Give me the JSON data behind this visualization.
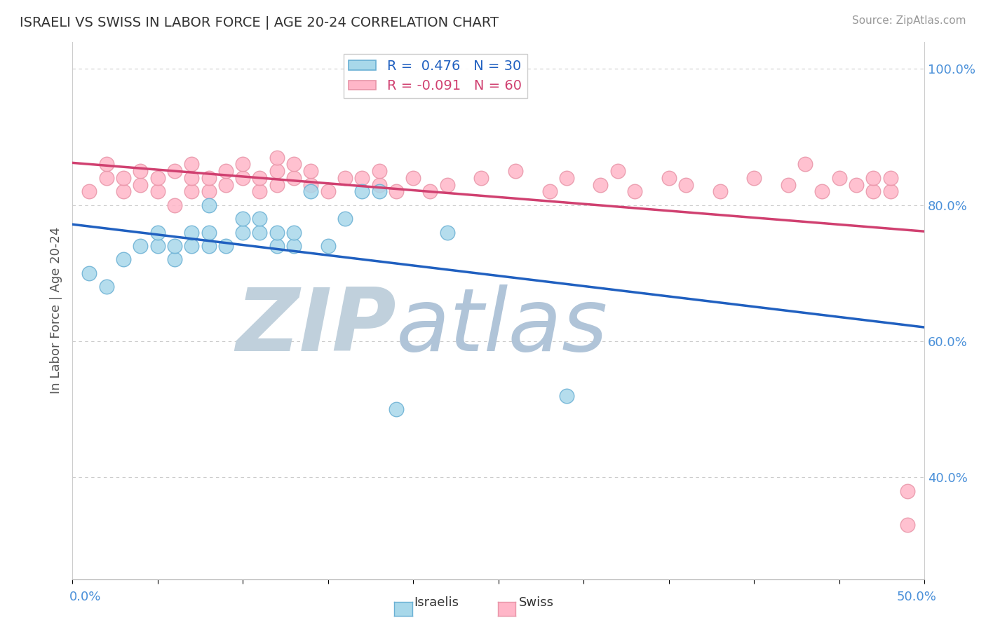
{
  "title": "ISRAELI VS SWISS IN LABOR FORCE | AGE 20-24 CORRELATION CHART",
  "source_text": "Source: ZipAtlas.com",
  "ylabel": "In Labor Force | Age 20-24",
  "xmin": 0.0,
  "xmax": 0.5,
  "ymin": 0.25,
  "ymax": 1.04,
  "yticks": [
    0.4,
    0.6,
    0.8,
    1.0
  ],
  "ytick_labels": [
    "40.0%",
    "60.0%",
    "80.0%",
    "100.0%"
  ],
  "israeli_color": "#a8d8ea",
  "swiss_color": "#ffb6c8",
  "israeli_edge": "#6ab0d4",
  "swiss_edge": "#e895a8",
  "trend_israeli_color": "#2060c0",
  "trend_swiss_color": "#d04070",
  "R_israeli": 0.476,
  "N_israeli": 30,
  "R_swiss": -0.091,
  "N_swiss": 60,
  "israeli_x": [
    0.01,
    0.02,
    0.03,
    0.04,
    0.05,
    0.05,
    0.06,
    0.06,
    0.07,
    0.07,
    0.08,
    0.08,
    0.08,
    0.09,
    0.1,
    0.1,
    0.11,
    0.11,
    0.12,
    0.12,
    0.13,
    0.13,
    0.14,
    0.15,
    0.16,
    0.17,
    0.18,
    0.19,
    0.22,
    0.29
  ],
  "israeli_y": [
    0.7,
    0.68,
    0.72,
    0.74,
    0.74,
    0.76,
    0.72,
    0.74,
    0.74,
    0.76,
    0.74,
    0.76,
    0.8,
    0.74,
    0.76,
    0.78,
    0.76,
    0.78,
    0.74,
    0.76,
    0.74,
    0.76,
    0.82,
    0.74,
    0.78,
    0.82,
    0.82,
    0.5,
    0.76,
    0.52
  ],
  "swiss_x": [
    0.01,
    0.02,
    0.02,
    0.03,
    0.03,
    0.04,
    0.04,
    0.05,
    0.05,
    0.06,
    0.06,
    0.07,
    0.07,
    0.07,
    0.08,
    0.08,
    0.09,
    0.09,
    0.1,
    0.1,
    0.11,
    0.11,
    0.12,
    0.12,
    0.12,
    0.13,
    0.13,
    0.14,
    0.14,
    0.15,
    0.16,
    0.17,
    0.18,
    0.18,
    0.19,
    0.2,
    0.21,
    0.22,
    0.24,
    0.26,
    0.28,
    0.29,
    0.31,
    0.32,
    0.33,
    0.35,
    0.36,
    0.38,
    0.4,
    0.42,
    0.43,
    0.44,
    0.45,
    0.46,
    0.47,
    0.47,
    0.48,
    0.48,
    0.49,
    0.49
  ],
  "swiss_y": [
    0.82,
    0.84,
    0.86,
    0.82,
    0.84,
    0.83,
    0.85,
    0.82,
    0.84,
    0.8,
    0.85,
    0.82,
    0.84,
    0.86,
    0.82,
    0.84,
    0.83,
    0.85,
    0.84,
    0.86,
    0.82,
    0.84,
    0.83,
    0.85,
    0.87,
    0.84,
    0.86,
    0.83,
    0.85,
    0.82,
    0.84,
    0.84,
    0.83,
    0.85,
    0.82,
    0.84,
    0.82,
    0.83,
    0.84,
    0.85,
    0.82,
    0.84,
    0.83,
    0.85,
    0.82,
    0.84,
    0.83,
    0.82,
    0.84,
    0.83,
    0.86,
    0.82,
    0.84,
    0.83,
    0.82,
    0.84,
    0.82,
    0.84,
    0.38,
    0.33
  ],
  "background_color": "#ffffff",
  "grid_color": "#cccccc",
  "watermark_zip": "ZIP",
  "watermark_atlas": "atlas",
  "watermark_color_zip": "#c8d8e8",
  "watermark_color_atlas": "#b0c8d8"
}
